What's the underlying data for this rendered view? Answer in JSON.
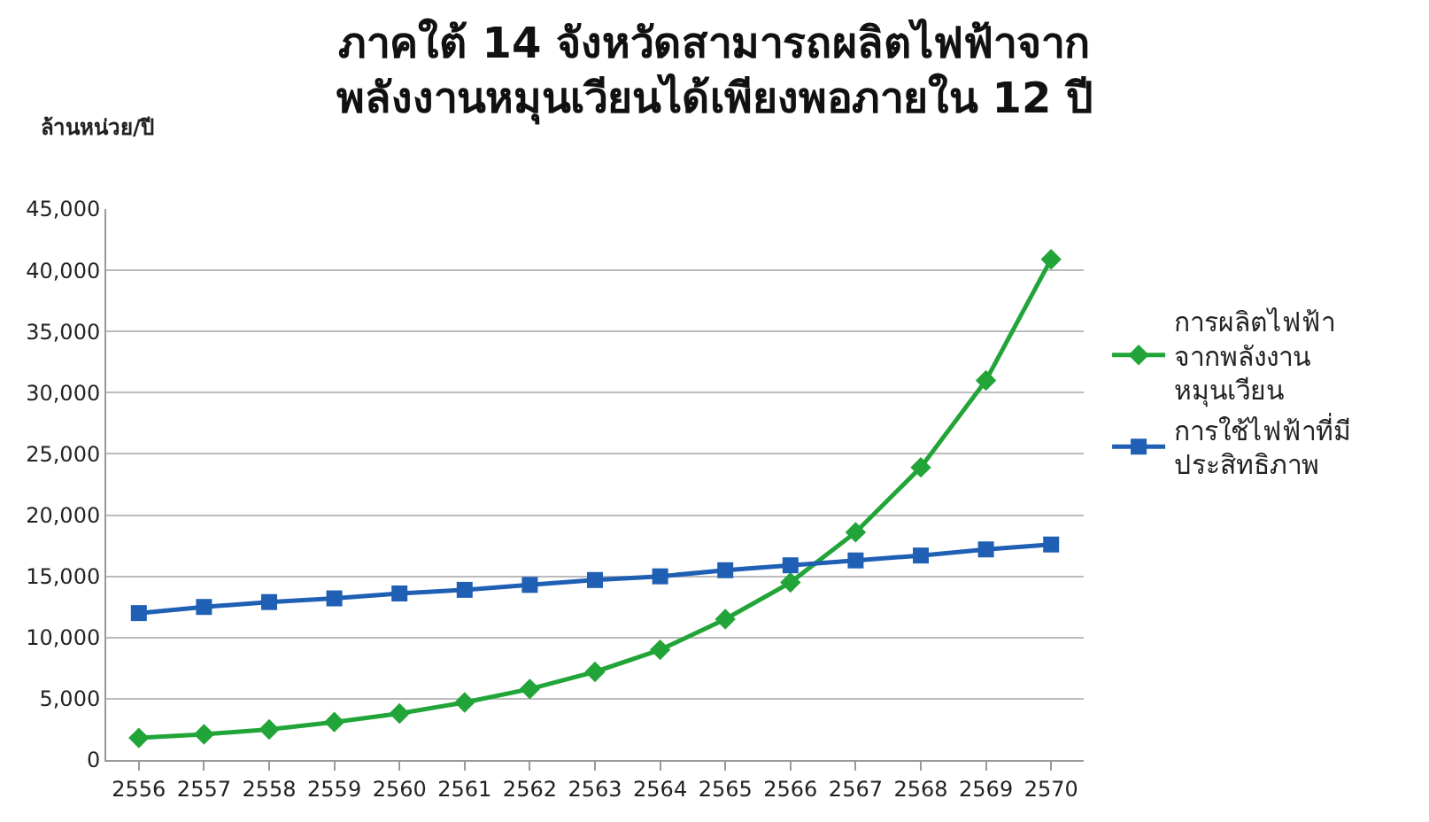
{
  "chart_data": {
    "type": "line",
    "title": "ภาคใต้ 14 จังหวัดสามารถผลิตไฟฟ้าจาก\nพลังงานหมุนเวียนได้เพียงพอภายใน 12 ปี",
    "ylabel": "ล้านหน่วย/ปี",
    "categories": [
      "2556",
      "2557",
      "2558",
      "2559",
      "2560",
      "2561",
      "2562",
      "2563",
      "2564",
      "2565",
      "2566",
      "2567",
      "2568",
      "2569",
      "2570"
    ],
    "series": [
      {
        "name": "การผลิตไฟฟ้า\nจากพลังงาน\nหมุนเวียน",
        "color": "#22a538",
        "marker": "diamond",
        "values": [
          1800,
          2100,
          2500,
          3100,
          3800,
          4700,
          5800,
          7200,
          9000,
          11500,
          14500,
          18600,
          23900,
          31000,
          40900
        ]
      },
      {
        "name": "การใช้ไฟฟ้าที่มี\nประสิทธิภาพ",
        "color": "#1f5fb4",
        "marker": "square",
        "values": [
          12000,
          12500,
          12900,
          13200,
          13600,
          13900,
          14300,
          14700,
          15000,
          15500,
          15900,
          16300,
          16700,
          17200,
          17600
        ]
      }
    ],
    "ylim": [
      0,
      45000
    ],
    "yticks": [
      {
        "value": 0,
        "label": "0"
      },
      {
        "value": 5000,
        "label": "5,000"
      },
      {
        "value": 10000,
        "label": "10,000"
      },
      {
        "value": 15000,
        "label": "15,000"
      },
      {
        "value": 20000,
        "label": "20,000"
      },
      {
        "value": 25000,
        "label": "25,000"
      },
      {
        "value": 30000,
        "label": "30,000"
      },
      {
        "value": 35000,
        "label": "35,000"
      },
      {
        "value": 40000,
        "label": "40,000"
      },
      {
        "value": 45000,
        "label": "45,000"
      }
    ],
    "grid": "y",
    "legend": "right",
    "line_style": "solid"
  }
}
